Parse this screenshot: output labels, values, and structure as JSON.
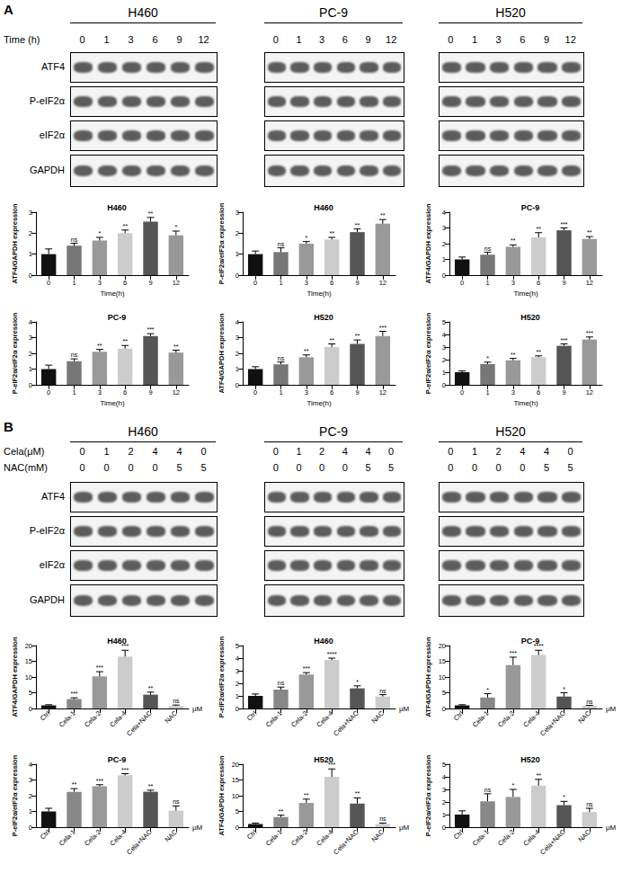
{
  "blots": [
    {
      "panel": "A",
      "cell_lines": [
        "H460",
        "PC-9",
        "H520"
      ],
      "lane_rows": [
        {
          "label": "Time (h)",
          "lanes": [
            "0",
            "1",
            "3",
            "6",
            "9",
            "12"
          ]
        }
      ],
      "proteins": [
        "ATF4",
        "P-eIF2α",
        "eIF2α",
        "GAPDH"
      ]
    },
    {
      "panel": "B",
      "cell_lines": [
        "H460",
        "PC-9",
        "H520"
      ],
      "lane_rows": [
        {
          "label": "Cela(μM)",
          "lanes": [
            "0",
            "1",
            "2",
            "4",
            "4",
            "0"
          ]
        },
        {
          "label": "NAC(mM)",
          "lanes": [
            "0",
            "0",
            "0",
            "0",
            "5",
            "5"
          ]
        }
      ],
      "proteins": [
        "ATF4",
        "P-eIF2α",
        "eIF2α",
        "GAPDH"
      ]
    }
  ],
  "chart_data": [
    {
      "type": "bar",
      "title": "H460",
      "xlabel": "Time(h)",
      "ylabel": "ATF4/GAPDH expression",
      "categories": [
        "0",
        "1",
        "3",
        "6",
        "9",
        "12"
      ],
      "values": [
        1.0,
        1.4,
        1.65,
        2.0,
        2.55,
        1.9
      ],
      "errors": [
        0.25,
        0.12,
        0.15,
        0.15,
        0.2,
        0.2
      ],
      "annotations": [
        null,
        "ns",
        "*",
        "**",
        "**",
        "*"
      ],
      "colors": [
        "#111111",
        "#777777",
        "#999999",
        "#cccccc",
        "#555555",
        "#999999"
      ],
      "ylim": [
        0,
        3
      ],
      "yticks": [
        0,
        1,
        2,
        3
      ],
      "grid": false
    },
    {
      "type": "bar",
      "title": "H460",
      "xlabel": "Time(h)",
      "ylabel": "P-eIF2α/eIF2α expression",
      "categories": [
        "0",
        "1",
        "3",
        "6",
        "9",
        "12"
      ],
      "values": [
        1.0,
        1.1,
        1.5,
        1.7,
        2.05,
        2.45
      ],
      "errors": [
        0.15,
        0.2,
        0.1,
        0.1,
        0.15,
        0.2
      ],
      "annotations": [
        null,
        "ns",
        "*",
        "**",
        "**",
        "**"
      ],
      "colors": [
        "#111111",
        "#777777",
        "#999999",
        "#cccccc",
        "#555555",
        "#999999"
      ],
      "ylim": [
        0,
        3
      ],
      "yticks": [
        0,
        1,
        2,
        3
      ],
      "grid": false
    },
    {
      "type": "bar",
      "title": "PC-9",
      "xlabel": "Time(h)",
      "ylabel": "ATF4/GAPDH expression",
      "categories": [
        "0",
        "1",
        "3",
        "6",
        "9",
        "12"
      ],
      "values": [
        1.0,
        1.3,
        1.8,
        2.4,
        2.85,
        2.3
      ],
      "errors": [
        0.15,
        0.15,
        0.12,
        0.3,
        0.15,
        0.15
      ],
      "annotations": [
        null,
        "ns",
        "**",
        "**",
        "***",
        "**"
      ],
      "colors": [
        "#111111",
        "#777777",
        "#999999",
        "#cccccc",
        "#555555",
        "#999999"
      ],
      "ylim": [
        0,
        4
      ],
      "yticks": [
        0,
        1,
        2,
        3,
        4
      ],
      "grid": false
    },
    {
      "type": "bar",
      "title": "PC-9",
      "xlabel": "Time(h)",
      "ylabel": "P-eIF2α/eIF2α expression",
      "categories": [
        "0",
        "1",
        "3",
        "6",
        "9",
        "12"
      ],
      "values": [
        1.0,
        1.5,
        2.1,
        2.3,
        3.1,
        2.05
      ],
      "errors": [
        0.25,
        0.15,
        0.15,
        0.2,
        0.15,
        0.15
      ],
      "annotations": [
        null,
        "ns",
        "**",
        "**",
        "***",
        "**"
      ],
      "colors": [
        "#111111",
        "#777777",
        "#999999",
        "#cccccc",
        "#555555",
        "#999999"
      ],
      "ylim": [
        0,
        4
      ],
      "yticks": [
        0,
        1,
        2,
        3,
        4
      ],
      "grid": false
    },
    {
      "type": "bar",
      "title": "H520",
      "xlabel": "Time(h)",
      "ylabel": "ATF4/GAPDH expression",
      "categories": [
        "0",
        "1",
        "3",
        "6",
        "9",
        "12"
      ],
      "values": [
        1.0,
        1.3,
        1.75,
        2.4,
        2.6,
        3.1
      ],
      "errors": [
        0.15,
        0.15,
        0.15,
        0.2,
        0.25,
        0.3
      ],
      "annotations": [
        null,
        "ns",
        "**",
        "**",
        "**",
        "***"
      ],
      "colors": [
        "#111111",
        "#777777",
        "#999999",
        "#cccccc",
        "#555555",
        "#999999"
      ],
      "ylim": [
        0,
        4
      ],
      "yticks": [
        0,
        1,
        2,
        3,
        4
      ],
      "grid": false
    },
    {
      "type": "bar",
      "title": "H520",
      "xlabel": "Time(h)",
      "ylabel": "P-eIF2α/eIF2α expression",
      "categories": [
        "0",
        "1",
        "3",
        "6",
        "9",
        "12"
      ],
      "values": [
        1.0,
        1.65,
        1.95,
        2.2,
        3.1,
        3.6
      ],
      "errors": [
        0.1,
        0.15,
        0.15,
        0.1,
        0.15,
        0.2
      ],
      "annotations": [
        null,
        "*",
        "**",
        "**",
        "***",
        "***"
      ],
      "colors": [
        "#111111",
        "#777777",
        "#999999",
        "#cccccc",
        "#555555",
        "#999999"
      ],
      "ylim": [
        0,
        5
      ],
      "yticks": [
        0,
        1,
        2,
        3,
        4,
        5
      ],
      "grid": false
    },
    {
      "type": "bar",
      "title": "H460",
      "xlabel": "μM",
      "ylabel": "ATF4/GAPDH expression",
      "categories": [
        "Ctrl",
        "Cela-1",
        "Cela-2",
        "Cela-4",
        "Cela+NAC",
        "NAC"
      ],
      "values": [
        1.0,
        3.0,
        10.2,
        16.5,
        4.4,
        0.8
      ],
      "errors": [
        0.2,
        0.4,
        1.5,
        2.0,
        0.8,
        0.3
      ],
      "annotations": [
        null,
        "***",
        "***",
        "***",
        "**",
        "ns"
      ],
      "colors": [
        "#111111",
        "#888888",
        "#999999",
        "#cccccc",
        "#555555",
        "#cccccc"
      ],
      "ylim": [
        0,
        20
      ],
      "yticks": [
        0,
        5,
        10,
        15,
        20
      ],
      "grid": false
    },
    {
      "type": "bar",
      "title": "H460",
      "xlabel": "μM",
      "ylabel": "P-eIF2α/eIF2α expression",
      "categories": [
        "Ctrl",
        "Cela-1",
        "Cela-2",
        "Cela-4",
        "Cela+NAC",
        "NAC"
      ],
      "values": [
        1.0,
        1.5,
        2.7,
        3.85,
        1.6,
        0.95
      ],
      "errors": [
        0.15,
        0.2,
        0.15,
        0.15,
        0.2,
        0.15
      ],
      "annotations": [
        null,
        "ns",
        "***",
        "****",
        "*",
        "ns"
      ],
      "colors": [
        "#111111",
        "#888888",
        "#999999",
        "#cccccc",
        "#555555",
        "#cccccc"
      ],
      "ylim": [
        0,
        5
      ],
      "yticks": [
        0,
        1,
        2,
        3,
        4,
        5
      ],
      "grid": false
    },
    {
      "type": "bar",
      "title": "PC-9",
      "xlabel": "μM",
      "ylabel": "ATF4/GAPDH expression",
      "categories": [
        "Ctrl",
        "Cela-1",
        "Cela-2",
        "Cela-4",
        "Cela+NAC",
        "NAC"
      ],
      "values": [
        1.0,
        3.5,
        13.8,
        17.0,
        3.8,
        0.8
      ],
      "errors": [
        0.2,
        1.2,
        2.5,
        1.5,
        1.2,
        0.2
      ],
      "annotations": [
        null,
        "*",
        "***",
        "****",
        "*",
        "ns"
      ],
      "colors": [
        "#111111",
        "#888888",
        "#999999",
        "#cccccc",
        "#555555",
        "#cccccc"
      ],
      "ylim": [
        0,
        20
      ],
      "yticks": [
        0,
        5,
        10,
        15,
        20
      ],
      "grid": false
    },
    {
      "type": "bar",
      "title": "PC-9",
      "xlabel": "μM",
      "ylabel": "P-eIF2α/eIF2α expression",
      "categories": [
        "Ctrl",
        "Cela-1",
        "Cela-2",
        "Cela-4",
        "Cela+NAC",
        "NAC"
      ],
      "values": [
        1.0,
        2.25,
        2.6,
        3.3,
        2.25,
        1.05
      ],
      "errors": [
        0.2,
        0.2,
        0.1,
        0.1,
        0.1,
        0.3
      ],
      "annotations": [
        null,
        "**",
        "***",
        "***",
        "**",
        "ns"
      ],
      "colors": [
        "#111111",
        "#888888",
        "#999999",
        "#cccccc",
        "#555555",
        "#cccccc"
      ],
      "ylim": [
        0,
        4
      ],
      "yticks": [
        0,
        1,
        2,
        3,
        4
      ],
      "grid": false
    },
    {
      "type": "bar",
      "title": "H520",
      "xlabel": "μM",
      "ylabel": "ATF4/GAPDH expression",
      "categories": [
        "Ctrl",
        "Cela-1",
        "Cela-2",
        "Cela-4",
        "Cela+NAC",
        "NAC"
      ],
      "values": [
        1.0,
        3.2,
        7.7,
        16.0,
        7.5,
        1.0
      ],
      "errors": [
        0.3,
        0.6,
        1.2,
        2.5,
        1.8,
        0.3
      ],
      "annotations": [
        null,
        "**",
        "**",
        "***",
        "**",
        "ns"
      ],
      "colors": [
        "#111111",
        "#888888",
        "#999999",
        "#cccccc",
        "#555555",
        "#cccccc"
      ],
      "ylim": [
        0,
        20
      ],
      "yticks": [
        0,
        5,
        10,
        15,
        20
      ],
      "grid": false
    },
    {
      "type": "bar",
      "title": "H520",
      "xlabel": "μM",
      "ylabel": "P-eIF2α/eIF2α expression",
      "categories": [
        "Ctrl",
        "Cela-1",
        "Cela-2",
        "Cela-4",
        "Cela+NAC",
        "NAC"
      ],
      "values": [
        1.0,
        2.05,
        2.4,
        3.3,
        1.75,
        1.2
      ],
      "errors": [
        0.3,
        0.6,
        0.6,
        0.5,
        0.3,
        0.3
      ],
      "annotations": [
        null,
        "ns",
        "*",
        "**",
        "*",
        "ns"
      ],
      "colors": [
        "#111111",
        "#888888",
        "#999999",
        "#cccccc",
        "#555555",
        "#cccccc"
      ],
      "ylim": [
        0,
        5
      ],
      "yticks": [
        0,
        1,
        2,
        3,
        4,
        5
      ],
      "grid": false
    }
  ]
}
